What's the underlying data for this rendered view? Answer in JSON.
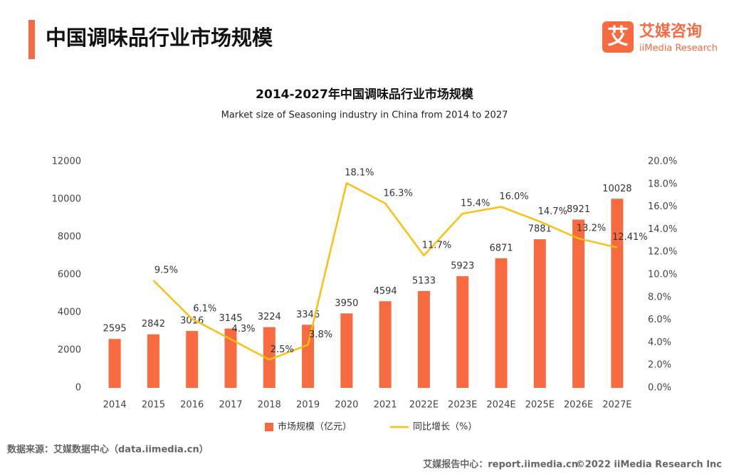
{
  "header": {
    "title": "中国调味品行业市场规模"
  },
  "logo": {
    "icon": "艾",
    "name": "艾媒咨询",
    "english": "iiMedia Research"
  },
  "chart_data": {
    "type": "combo",
    "title": "2014-2027年中国调味品行业市场规模",
    "subtitle": "Market size of Seasoning industry in China from 2014 to 2027",
    "categories": [
      "2014",
      "2015",
      "2016",
      "2017",
      "2018",
      "2019",
      "2020",
      "2021",
      "2022E",
      "2023E",
      "2024E",
      "2025E",
      "2026E",
      "2027E"
    ],
    "series": [
      {
        "name": "市场规模（亿元）",
        "type": "bar",
        "color": "#f86a3f",
        "values": [
          2595,
          2842,
          3016,
          3145,
          3224,
          3346,
          3950,
          4594,
          5133,
          5923,
          6871,
          7881,
          8921,
          10028
        ]
      },
      {
        "name": "同比增长（%）",
        "type": "line",
        "axis": "y2",
        "color": "#fcc010",
        "values": [
          null,
          9.5,
          6.1,
          4.3,
          2.5,
          3.8,
          18.1,
          16.3,
          11.7,
          15.4,
          16.0,
          14.7,
          13.2,
          12.41
        ],
        "value_labels": [
          null,
          "9.5%",
          "6.1%",
          "4.3%",
          "2.5%",
          "3.8%",
          "18.1%",
          "16.3%",
          "11.7%",
          "15.4%",
          "16.0%",
          "14.7%",
          "13.2%",
          "12.41%"
        ]
      }
    ],
    "ylim": [
      0,
      12000
    ],
    "yticks": [
      0,
      2000,
      4000,
      6000,
      8000,
      10000,
      12000
    ],
    "y2lim": [
      0,
      20
    ],
    "y2ticks": [
      {
        "value": 0,
        "label": "0.0%"
      },
      {
        "value": 2,
        "label": "2.0%"
      },
      {
        "value": 4,
        "label": "4.0%"
      },
      {
        "value": 6,
        "label": "6.0%"
      },
      {
        "value": 8,
        "label": "8.0%"
      },
      {
        "value": 10,
        "label": "10.0%"
      },
      {
        "value": 12,
        "label": "12.0%"
      },
      {
        "value": 14,
        "label": "14.0%"
      },
      {
        "value": 16,
        "label": "16.0%"
      },
      {
        "value": 18,
        "label": "18.0%"
      },
      {
        "value": 20,
        "label": "20.0%"
      }
    ],
    "legend": "bottom"
  },
  "source": "数据来源：艾媒数据中心（data.iimedia.cn）",
  "footer": {
    "report": "艾媒报告中心：report.iimedia.cn",
    "copyright": "©2022  iiMedia Research  Inc"
  }
}
